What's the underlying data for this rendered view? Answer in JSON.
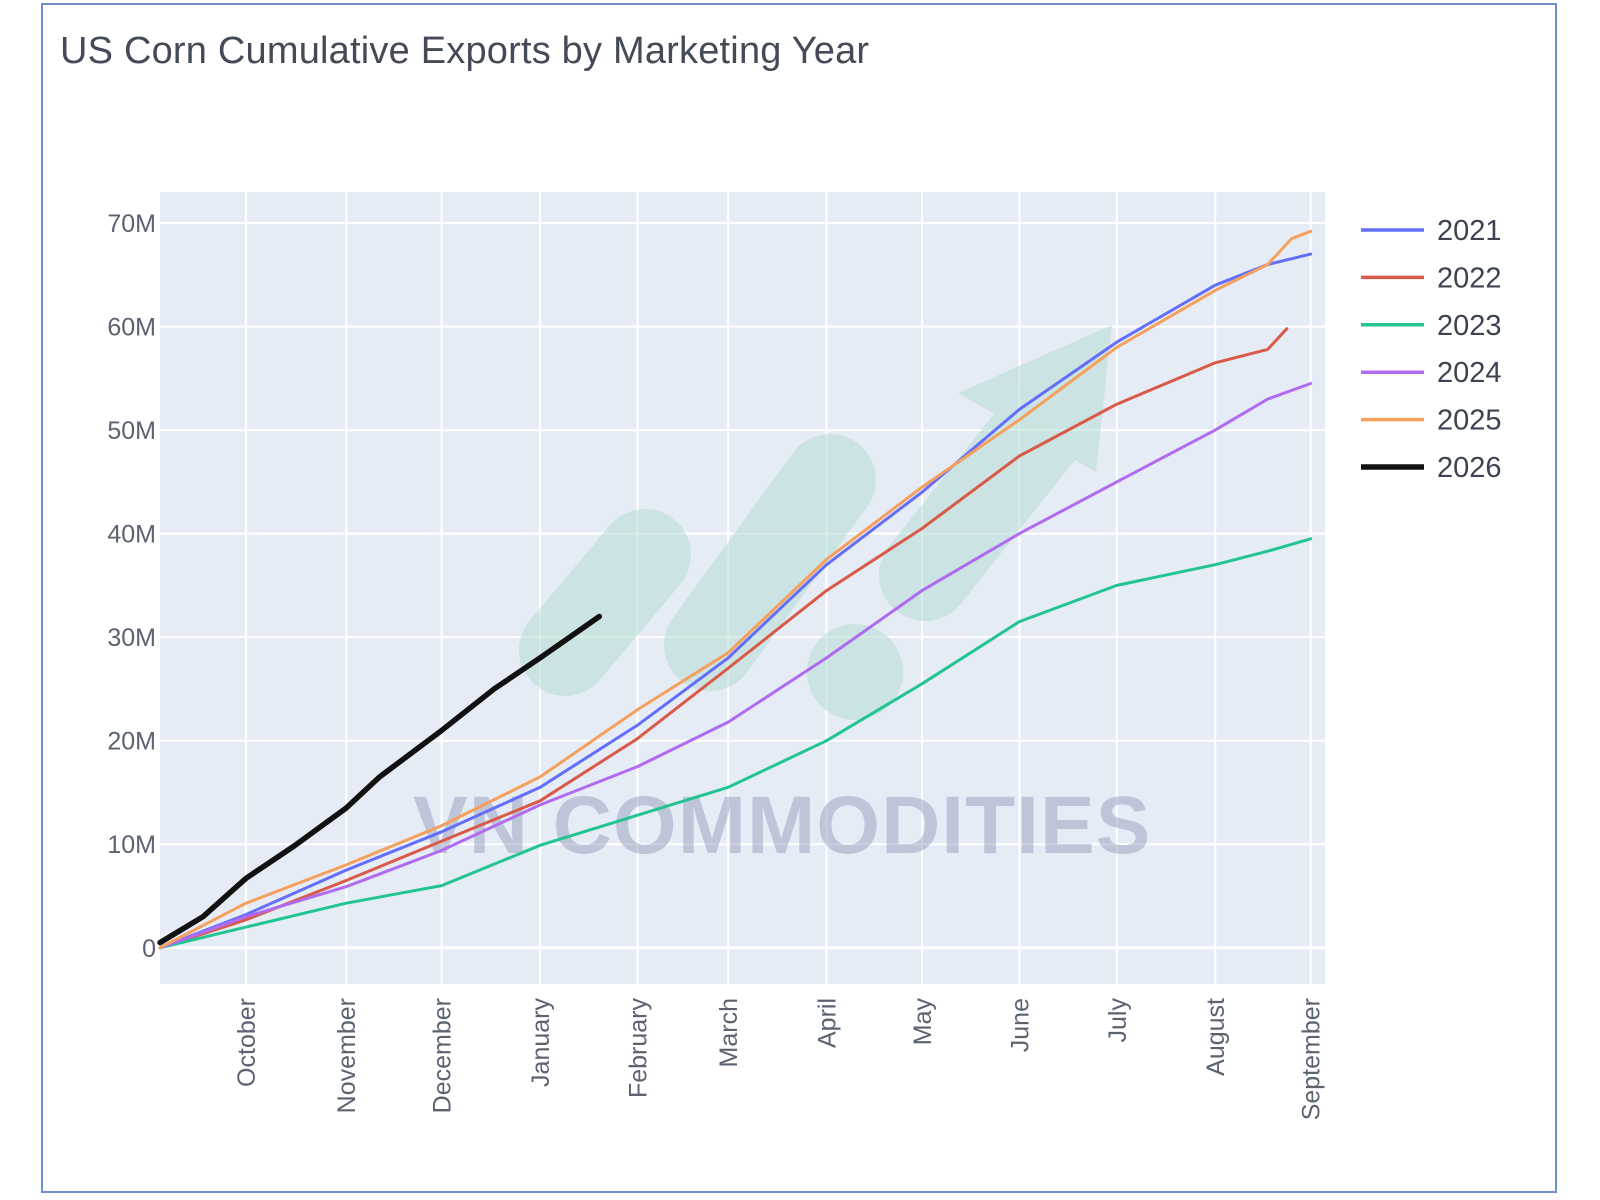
{
  "title": "US Corn Cumulative Exports by Marketing Year",
  "watermark": "VN COMMODITIES",
  "chart_data": {
    "type": "line",
    "title": "US Corn Cumulative Exports by Marketing Year",
    "xlabel": "",
    "ylabel": "",
    "ylim": [
      -3500000,
      73000000
    ],
    "xlim": [
      0,
      12.2
    ],
    "grid": true,
    "legend_position": "right",
    "y_ticks": [
      {
        "value": 0,
        "label": "0"
      },
      {
        "value": 10000000,
        "label": "10M"
      },
      {
        "value": 20000000,
        "label": "20M"
      },
      {
        "value": 30000000,
        "label": "30M"
      },
      {
        "value": 40000000,
        "label": "40M"
      },
      {
        "value": 50000000,
        "label": "50M"
      },
      {
        "value": 60000000,
        "label": "60M"
      },
      {
        "value": 70000000,
        "label": "70M"
      }
    ],
    "x_ticks": [
      {
        "value": 0.9,
        "label": "October"
      },
      {
        "value": 1.95,
        "label": "November"
      },
      {
        "value": 2.95,
        "label": "December"
      },
      {
        "value": 3.98,
        "label": "January"
      },
      {
        "value": 5.0,
        "label": "February"
      },
      {
        "value": 5.95,
        "label": "March"
      },
      {
        "value": 6.98,
        "label": "April"
      },
      {
        "value": 7.98,
        "label": "May"
      },
      {
        "value": 9.0,
        "label": "June"
      },
      {
        "value": 10.02,
        "label": "July"
      },
      {
        "value": 11.05,
        "label": "August"
      },
      {
        "value": 12.05,
        "label": "September"
      }
    ],
    "series": [
      {
        "name": "2021",
        "color": "#636efa",
        "points": [
          [
            0,
            0
          ],
          [
            0.9,
            3200000
          ],
          [
            1.95,
            7500000
          ],
          [
            2.95,
            11200000
          ],
          [
            3.98,
            15500000
          ],
          [
            5.0,
            21500000
          ],
          [
            5.95,
            28000000
          ],
          [
            6.98,
            37000000
          ],
          [
            7.98,
            44000000
          ],
          [
            9.0,
            52000000
          ],
          [
            10.02,
            58500000
          ],
          [
            11.05,
            64000000
          ],
          [
            11.6,
            66000000
          ],
          [
            12.05,
            67000000
          ]
        ]
      },
      {
        "name": "2022",
        "color": "#d95a48",
        "points": [
          [
            0,
            0
          ],
          [
            0.9,
            2700000
          ],
          [
            1.95,
            6500000
          ],
          [
            2.95,
            10300000
          ],
          [
            3.98,
            14200000
          ],
          [
            5.0,
            20200000
          ],
          [
            5.95,
            27000000
          ],
          [
            6.98,
            34500000
          ],
          [
            7.98,
            40500000
          ],
          [
            9.0,
            47500000
          ],
          [
            10.02,
            52500000
          ],
          [
            11.05,
            56500000
          ],
          [
            11.6,
            57800000
          ],
          [
            11.8,
            59800000
          ]
        ]
      },
      {
        "name": "2023",
        "color": "#22c592",
        "points": [
          [
            0,
            0
          ],
          [
            0.9,
            2000000
          ],
          [
            1.95,
            4300000
          ],
          [
            2.95,
            6000000
          ],
          [
            3.98,
            9900000
          ],
          [
            5.0,
            12800000
          ],
          [
            5.95,
            15500000
          ],
          [
            6.98,
            20000000
          ],
          [
            7.98,
            25500000
          ],
          [
            9.0,
            31500000
          ],
          [
            10.02,
            35000000
          ],
          [
            11.05,
            37000000
          ],
          [
            11.6,
            38300000
          ],
          [
            12.05,
            39500000
          ]
        ]
      },
      {
        "name": "2024",
        "color": "#b06cf0",
        "points": [
          [
            0,
            0
          ],
          [
            0.9,
            3000000
          ],
          [
            1.95,
            5900000
          ],
          [
            2.95,
            9400000
          ],
          [
            3.98,
            13800000
          ],
          [
            5.0,
            17500000
          ],
          [
            5.95,
            21800000
          ],
          [
            6.98,
            28000000
          ],
          [
            7.98,
            34500000
          ],
          [
            9.0,
            40000000
          ],
          [
            10.02,
            45000000
          ],
          [
            11.05,
            50000000
          ],
          [
            11.6,
            53000000
          ],
          [
            12.05,
            54500000
          ]
        ]
      },
      {
        "name": "2025",
        "color": "#f5a05c",
        "points": [
          [
            0,
            0
          ],
          [
            0.9,
            4300000
          ],
          [
            1.95,
            8000000
          ],
          [
            2.95,
            11800000
          ],
          [
            3.98,
            16500000
          ],
          [
            5.0,
            23000000
          ],
          [
            5.95,
            28500000
          ],
          [
            6.98,
            37500000
          ],
          [
            7.98,
            44500000
          ],
          [
            9.0,
            51000000
          ],
          [
            10.02,
            58000000
          ],
          [
            11.05,
            63500000
          ],
          [
            11.6,
            66000000
          ],
          [
            11.85,
            68500000
          ],
          [
            12.05,
            69200000
          ]
        ]
      },
      {
        "name": "2026",
        "color": "#111111",
        "points": [
          [
            0,
            500000
          ],
          [
            0.45,
            3000000
          ],
          [
            0.9,
            6700000
          ],
          [
            1.4,
            9800000
          ],
          [
            1.95,
            13500000
          ],
          [
            2.3,
            16500000
          ],
          [
            2.95,
            21000000
          ],
          [
            3.5,
            25000000
          ],
          [
            3.98,
            28000000
          ],
          [
            4.6,
            32000000
          ]
        ]
      }
    ]
  }
}
